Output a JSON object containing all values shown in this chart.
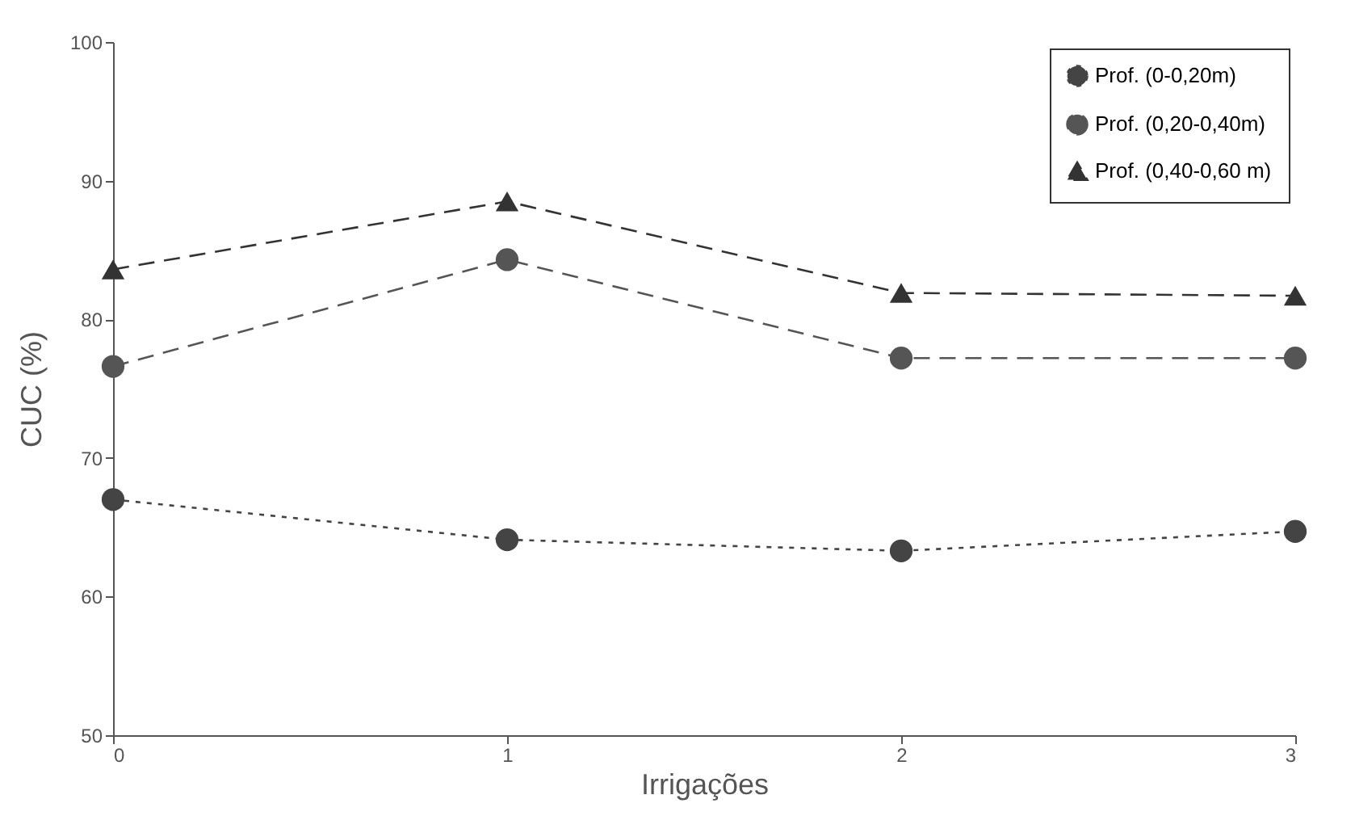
{
  "chart_data": {
    "type": "line",
    "xlabel": "Irrigações",
    "ylabel": "CUC (%)",
    "x": [
      0,
      1,
      2,
      3
    ],
    "xlim": [
      0,
      3
    ],
    "xticks": [
      0,
      1,
      2,
      3
    ],
    "ylim": [
      50,
      100
    ],
    "yticks": [
      50,
      60,
      70,
      80,
      90,
      100
    ],
    "legend": "top right",
    "grid": false,
    "series": [
      {
        "name": "Prof. (0-0,20m)",
        "color": "#444444",
        "marker": "circle",
        "line_style": "dotted",
        "values": [
          67,
          64.1,
          63.3,
          64.7
        ]
      },
      {
        "name": "Prof. (0,20-0,40m)",
        "color": "#555555",
        "marker": "circle",
        "line_style": "dashed",
        "values": [
          76.6,
          84.3,
          77.2,
          77.2
        ]
      },
      {
        "name": "Prof. (0,40-0,60 m)",
        "color": "#333333",
        "marker": "triangle",
        "line_style": "dashed",
        "values": [
          83.6,
          88.5,
          81.9,
          81.7
        ]
      }
    ]
  }
}
